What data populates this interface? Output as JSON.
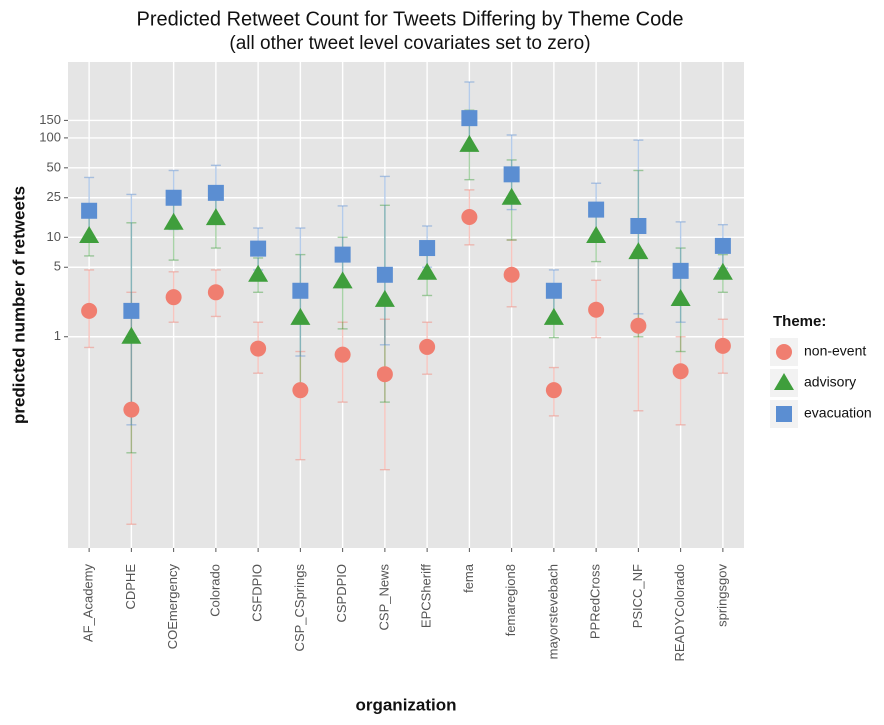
{
  "chart_data": {
    "type": "errorpoint",
    "title": "Predicted Retweet Count for Tweets Differing by Theme Code",
    "subtitle": "(all other tweet level covariates set to zero)",
    "x_label": "organization",
    "y_label": "predicted number of retweets",
    "legend_title": "Theme:",
    "log_scale": true,
    "grid": true,
    "categories": [
      "AF_Academy",
      "CDPHE",
      "COEmergency",
      "Colorado",
      "CSFDPIO",
      "CSP_CSprings",
      "CSPDPIO",
      "CSP_News",
      "EPCSheriff",
      "fema",
      "femaregion8",
      "mayorstevebach",
      "PPRedCross",
      "PSICC_NF",
      "READYColorado",
      "springsgov"
    ],
    "ylim": [
      0.0075,
      580
    ],
    "yticks": [
      1,
      5,
      10,
      25,
      50,
      100,
      150
    ],
    "series": [
      {
        "name": "non-event",
        "color": "#f07e70",
        "marker": "circle",
        "values": [
          1.82,
          0.185,
          2.5,
          2.8,
          0.76,
          0.29,
          0.66,
          0.42,
          0.79,
          16,
          4.2,
          0.29,
          1.87,
          1.29,
          0.45,
          0.81
        ],
        "lower": [
          0.78,
          0.013,
          1.4,
          1.6,
          0.43,
          0.058,
          0.22,
          0.046,
          0.42,
          8.4,
          2.0,
          0.16,
          0.98,
          0.18,
          0.13,
          0.43
        ],
        "upper": [
          4.7,
          2.8,
          4.5,
          4.7,
          1.4,
          0.71,
          1.4,
          1.5,
          1.4,
          30,
          9.4,
          0.49,
          3.7,
          7.5,
          1.0,
          1.5
        ]
      },
      {
        "name": "advisory",
        "color": "#3f9e3c",
        "marker": "triangle",
        "values": [
          10.3,
          1.0,
          14,
          15.6,
          4.2,
          1.55,
          3.6,
          2.35,
          4.4,
          85,
          25,
          1.55,
          10.3,
          7.1,
          2.4,
          4.4
        ],
        "lower": [
          6.5,
          0.068,
          5.9,
          7.8,
          2.8,
          0.32,
          1.2,
          0.22,
          2.6,
          38,
          9.4,
          0.98,
          5.7,
          1.0,
          0.71,
          2.8
        ],
        "upper": [
          17,
          14,
          27,
          30,
          6.2,
          6.7,
          10,
          21,
          6.7,
          190,
          60,
          2.8,
          19,
          47,
          7.8,
          6.7
        ]
      },
      {
        "name": "evacuation",
        "color": "#5b8ed2",
        "marker": "square",
        "values": [
          18.5,
          1.82,
          25,
          28,
          7.7,
          2.9,
          6.7,
          4.2,
          7.8,
          158,
          43,
          2.9,
          19,
          13,
          4.6,
          8.2
        ],
        "lower": [
          9.4,
          0.13,
          12,
          14,
          4.7,
          0.64,
          3.7,
          0.83,
          5.0,
          80,
          19,
          1.5,
          10.6,
          1.7,
          1.4,
          4.9
        ],
        "upper": [
          40,
          27,
          47,
          53,
          12.4,
          12.4,
          20.7,
          41,
          13,
          365,
          107,
          4.7,
          35,
          95,
          14.3,
          13.4
        ]
      }
    ]
  }
}
